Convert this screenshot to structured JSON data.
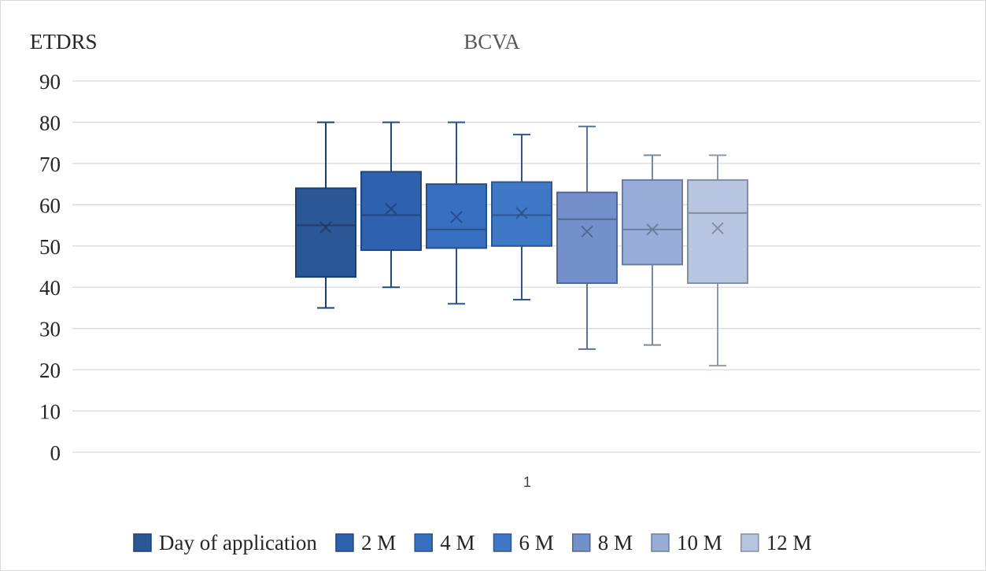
{
  "chart_data": {
    "type": "box",
    "title": "BCVA",
    "ylabel": "ETDRS",
    "xlabel": "",
    "categories": [
      "1"
    ],
    "ylim": [
      0,
      90
    ],
    "ytick_step": 10,
    "yticks": [
      "0",
      "10",
      "20",
      "30",
      "40",
      "50",
      "60",
      "70",
      "80",
      "90"
    ],
    "grid": true,
    "legend_position": "bottom",
    "series": [
      {
        "name": "Day of application",
        "color": "#2b5797",
        "min": 35,
        "q1": 42.5,
        "median": 55,
        "q3": 64,
        "max": 80,
        "mean": 54.5
      },
      {
        "name": "2 M",
        "color": "#2e62ae",
        "min": 40,
        "q1": 49,
        "median": 57.5,
        "q3": 68,
        "max": 80,
        "mean": 59
      },
      {
        "name": "4 M",
        "color": "#386fc0",
        "min": 36,
        "q1": 49.5,
        "median": 54,
        "q3": 65,
        "max": 80,
        "mean": 57
      },
      {
        "name": "6 M",
        "color": "#3f78c6",
        "min": 37,
        "q1": 50,
        "median": 57.5,
        "q3": 65.5,
        "max": 77,
        "mean": 58
      },
      {
        "name": "8 M",
        "color": "#7390ca",
        "min": 25,
        "q1": 41,
        "median": 56.5,
        "q3": 63,
        "max": 79,
        "mean": 53.5
      },
      {
        "name": "10 M",
        "color": "#98aed9",
        "min": 26,
        "q1": 45.5,
        "median": 54,
        "q3": 66,
        "max": 72,
        "mean": 54
      },
      {
        "name": "12 M",
        "color": "#b7c5e1",
        "min": 21,
        "q1": 41,
        "median": 58,
        "q3": 66,
        "max": 72,
        "mean": 54.3
      }
    ]
  }
}
